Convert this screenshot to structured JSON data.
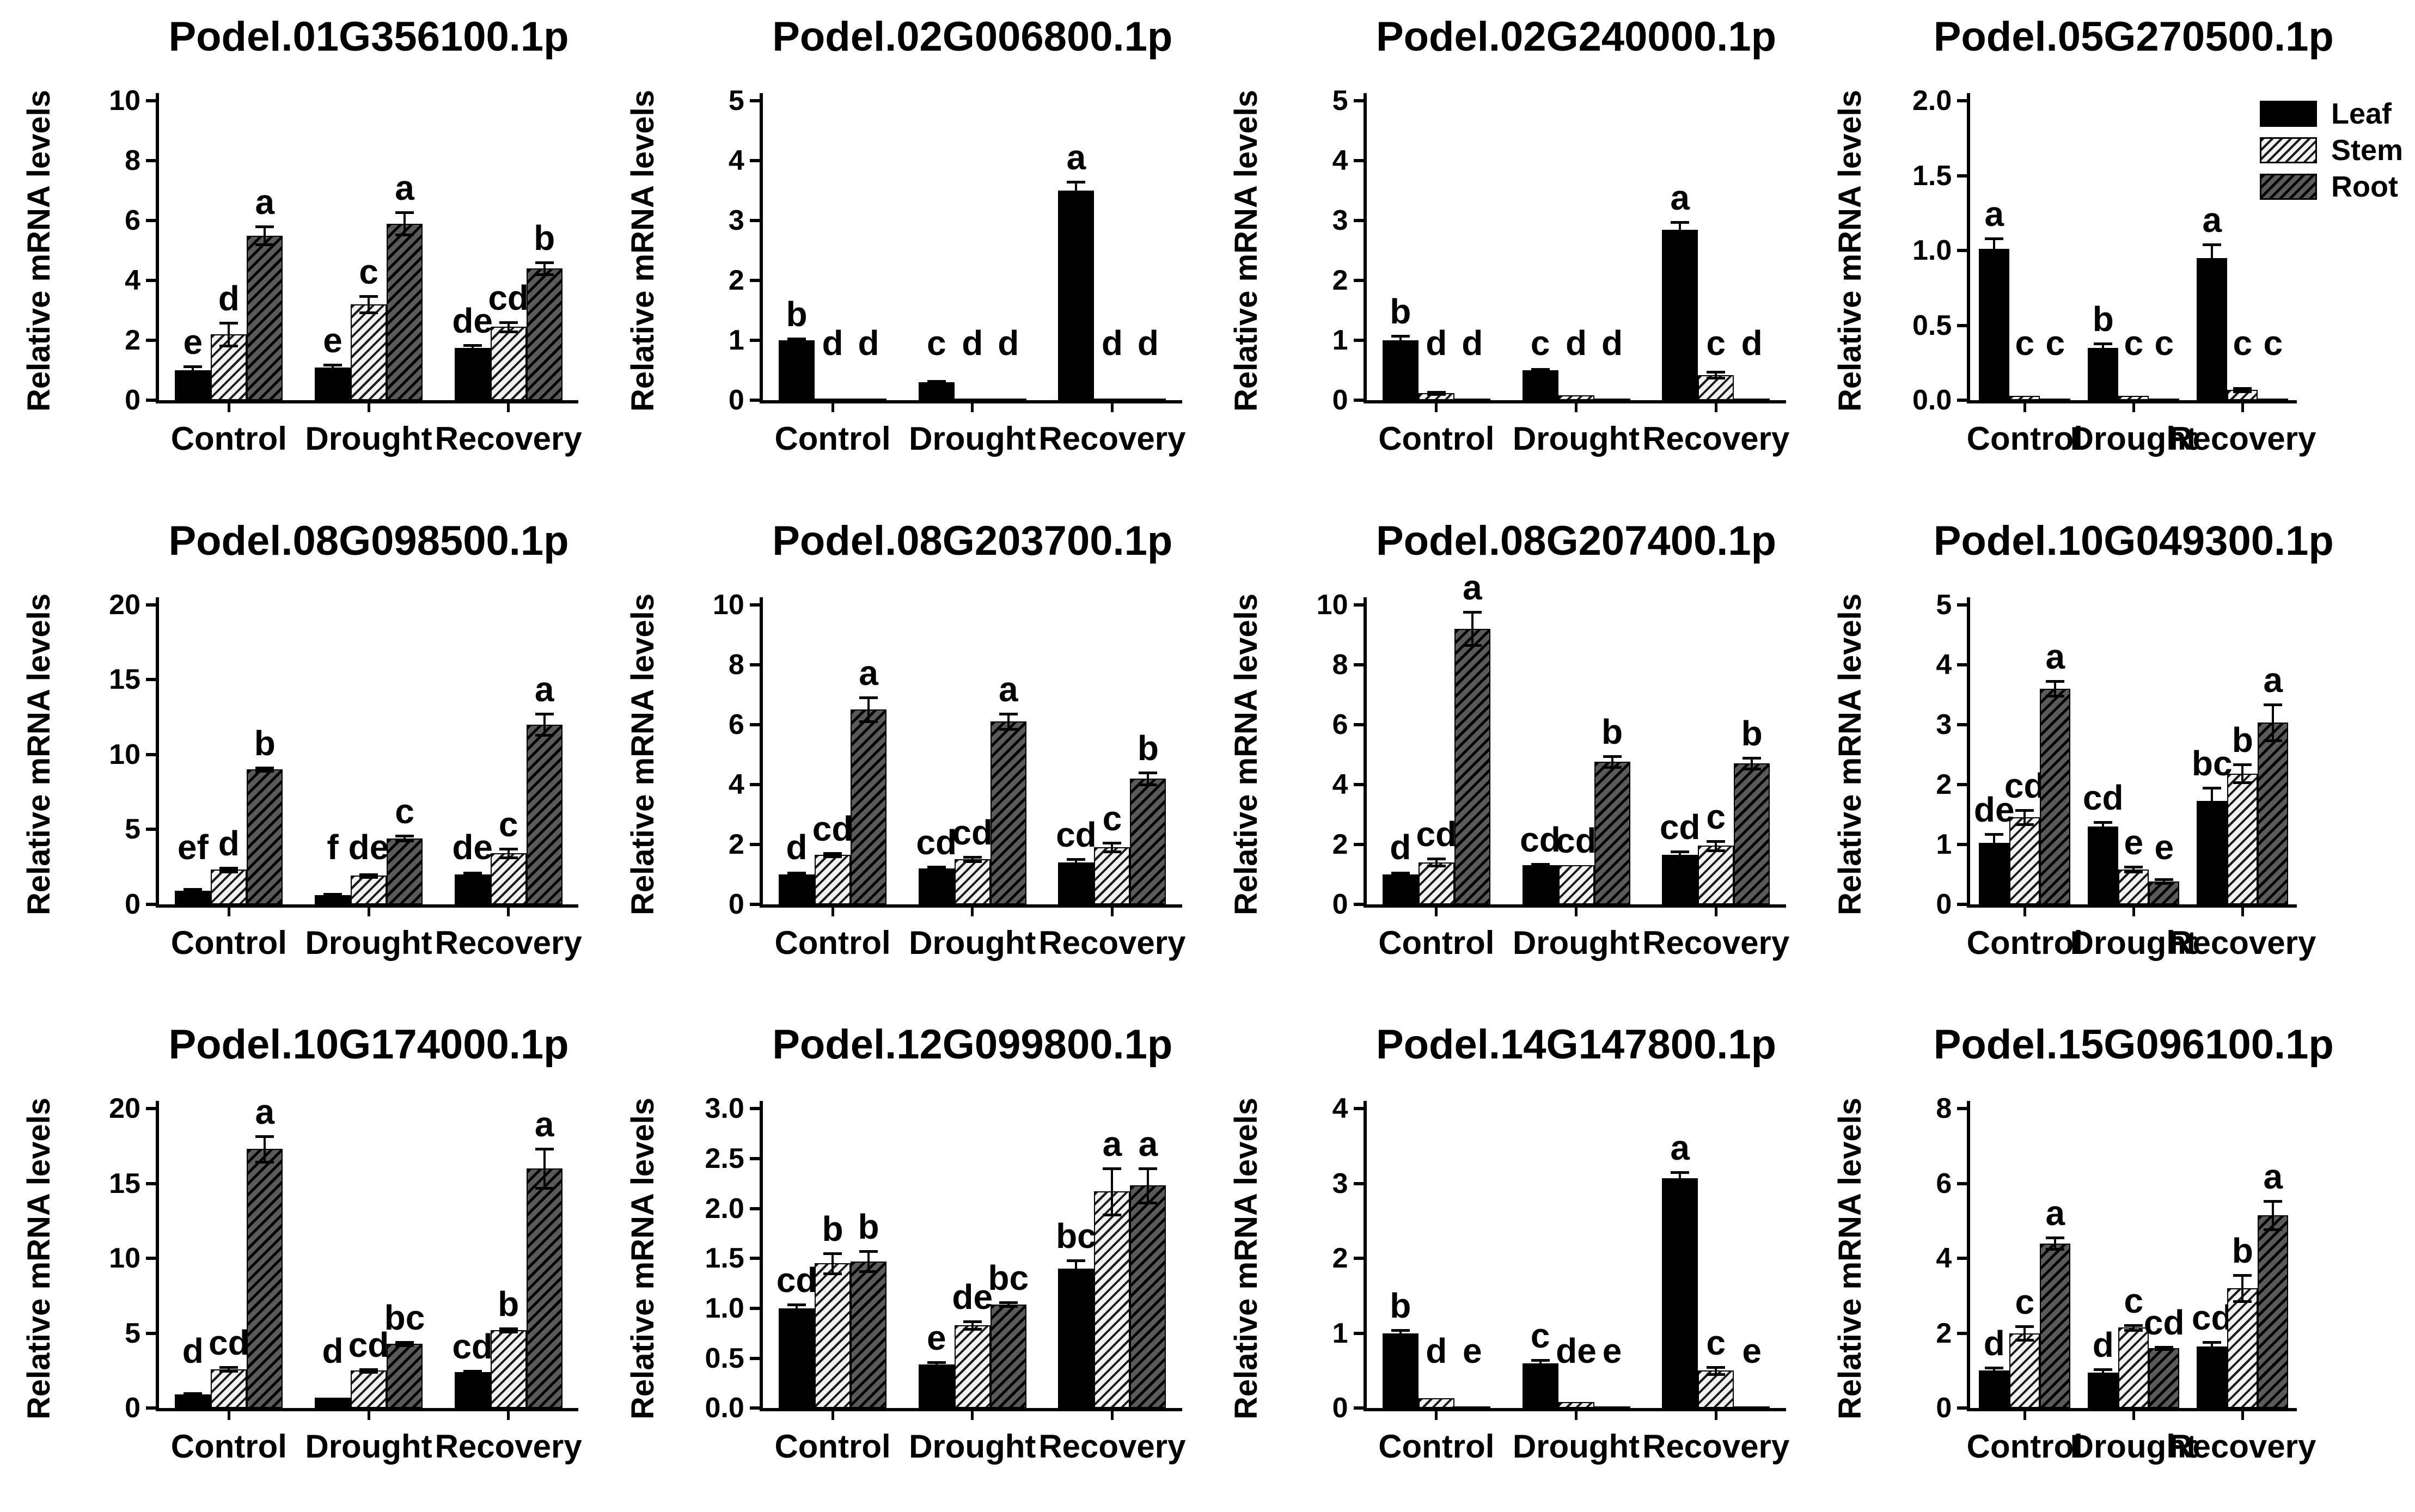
{
  "figure": {
    "ylabel": "Relative mRNA levels",
    "categories": [
      "Control",
      "Drought",
      "Recovery"
    ],
    "colors": {
      "leaf": "#000000",
      "stem_fill": "#f2f2f2",
      "stem_stripe": "#1a1a1a",
      "root_fill": "#5a5a5a",
      "root_stripe": "#000000",
      "axis": "#000000",
      "background": "#ffffff"
    }
  },
  "legend": {
    "items": [
      {
        "label": "Leaf",
        "swatch": "solid-black"
      },
      {
        "label": "Stem",
        "swatch": "light-diagonal-hatch"
      },
      {
        "label": "Root",
        "swatch": "dark-diagonal-hatch"
      }
    ]
  },
  "chart_data": [
    {
      "type": "bar",
      "title": "Podel.01G356100.1p",
      "ylabel": "Relative mRNA levels",
      "categories": [
        "Control",
        "Drought",
        "Recovery"
      ],
      "ylim": [
        0,
        10
      ],
      "yticks": [
        "0",
        "2",
        "4",
        "6",
        "8",
        "10"
      ],
      "series": [
        {
          "name": "Leaf",
          "values": [
            1.0,
            1.1,
            1.75
          ],
          "errors": [
            0.12,
            0.08,
            0.08
          ],
          "letters": [
            "e",
            "e",
            "de"
          ]
        },
        {
          "name": "Stem",
          "values": [
            2.2,
            3.2,
            2.45
          ],
          "errors": [
            0.38,
            0.28,
            0.15
          ],
          "letters": [
            "d",
            "c",
            "cd"
          ]
        },
        {
          "name": "Root",
          "values": [
            5.5,
            5.9,
            4.4
          ],
          "errors": [
            0.3,
            0.38,
            0.2
          ],
          "letters": [
            "a",
            "a",
            "b"
          ]
        }
      ]
    },
    {
      "type": "bar",
      "title": "Podel.02G006800.1p",
      "ylabel": "Relative mRNA levels",
      "categories": [
        "Control",
        "Drought",
        "Recovery"
      ],
      "ylim": [
        0,
        5
      ],
      "yticks": [
        "0",
        "1",
        "2",
        "3",
        "4",
        "5"
      ],
      "series": [
        {
          "name": "Leaf",
          "values": [
            1.0,
            0.3,
            3.5
          ],
          "errors": [
            0.03,
            0.02,
            0.15
          ],
          "letters": [
            "b",
            "c",
            "a"
          ]
        },
        {
          "name": "Stem",
          "values": [
            0.02,
            0.01,
            0.02
          ],
          "errors": [
            0,
            0.01,
            0
          ],
          "letters": [
            "d",
            "d",
            "d"
          ]
        },
        {
          "name": "Root",
          "values": [
            0.02,
            0.01,
            0.02
          ],
          "errors": [
            0,
            0,
            0
          ],
          "letters": [
            "d",
            "d",
            "d"
          ]
        }
      ]
    },
    {
      "type": "bar",
      "title": "Podel.02G240000.1p",
      "ylabel": "Relative mRNA levels",
      "categories": [
        "Control",
        "Drought",
        "Recovery"
      ],
      "ylim": [
        0,
        5
      ],
      "yticks": [
        "0",
        "1",
        "2",
        "3",
        "4",
        "5"
      ],
      "series": [
        {
          "name": "Leaf",
          "values": [
            1.0,
            0.5,
            2.85
          ],
          "errors": [
            0.07,
            0.02,
            0.12
          ],
          "letters": [
            "b",
            "c",
            "a"
          ]
        },
        {
          "name": "Stem",
          "values": [
            0.12,
            0.08,
            0.42
          ],
          "errors": [
            0.02,
            0.01,
            0.05
          ],
          "letters": [
            "d",
            "d",
            "c"
          ]
        },
        {
          "name": "Root",
          "values": [
            0.02,
            0.02,
            0.02
          ],
          "errors": [
            0,
            0,
            0
          ],
          "letters": [
            "d",
            "d",
            "d"
          ]
        }
      ]
    },
    {
      "type": "bar",
      "title": "Podel.05G270500.1p",
      "ylabel": "Relative mRNA levels",
      "categories": [
        "Control",
        "Drought",
        "Recovery"
      ],
      "ylim": [
        0,
        2
      ],
      "yticks": [
        "0.0",
        "0.5",
        "1.0",
        "1.5",
        "2.0"
      ],
      "series": [
        {
          "name": "Leaf",
          "values": [
            1.01,
            0.35,
            0.95
          ],
          "errors": [
            0.07,
            0.03,
            0.09
          ],
          "letters": [
            "a",
            "b",
            "a"
          ]
        },
        {
          "name": "Stem",
          "values": [
            0.03,
            0.03,
            0.07
          ],
          "errors": [
            0.005,
            0.005,
            0.01
          ],
          "letters": [
            "c",
            "c",
            "c"
          ]
        },
        {
          "name": "Root",
          "values": [
            0.01,
            0.01,
            0.01
          ],
          "errors": [
            0,
            0,
            0
          ],
          "letters": [
            "c",
            "c",
            "c"
          ]
        }
      ]
    },
    {
      "type": "bar",
      "title": "Podel.08G098500.1p",
      "ylabel": "Relative mRNA levels",
      "categories": [
        "Control",
        "Drought",
        "Recovery"
      ],
      "ylim": [
        0,
        20
      ],
      "yticks": [
        "0",
        "5",
        "10",
        "15",
        "20"
      ],
      "series": [
        {
          "name": "Leaf",
          "values": [
            0.9,
            0.6,
            2.0
          ],
          "errors": [
            0.1,
            0.08,
            0.08
          ],
          "letters": [
            "ef",
            "f",
            "de"
          ]
        },
        {
          "name": "Stem",
          "values": [
            2.3,
            1.9,
            3.4
          ],
          "errors": [
            0.12,
            0.1,
            0.3
          ],
          "letters": [
            "d",
            "de",
            "c"
          ]
        },
        {
          "name": "Root",
          "values": [
            9.0,
            4.4,
            12.0
          ],
          "errors": [
            0.1,
            0.15,
            0.7
          ],
          "letters": [
            "b",
            "c",
            "a"
          ]
        }
      ]
    },
    {
      "type": "bar",
      "title": "Podel.08G203700.1p",
      "ylabel": "Relative mRNA levels",
      "categories": [
        "Control",
        "Drought",
        "Recovery"
      ],
      "ylim": [
        0,
        10
      ],
      "yticks": [
        "0",
        "2",
        "4",
        "6",
        "8",
        "10"
      ],
      "series": [
        {
          "name": "Leaf",
          "values": [
            1.0,
            1.2,
            1.4
          ],
          "errors": [
            0.05,
            0.04,
            0.1
          ],
          "letters": [
            "d",
            "cd",
            "cd"
          ]
        },
        {
          "name": "Stem",
          "values": [
            1.65,
            1.5,
            1.9
          ],
          "errors": [
            0.05,
            0.08,
            0.15
          ],
          "letters": [
            "cd",
            "cd",
            "c"
          ]
        },
        {
          "name": "Root",
          "values": [
            6.5,
            6.1,
            4.2
          ],
          "errors": [
            0.4,
            0.25,
            0.2
          ],
          "letters": [
            "a",
            "a",
            "b"
          ]
        }
      ]
    },
    {
      "type": "bar",
      "title": "Podel.08G207400.1p",
      "ylabel": "Relative mRNA levels",
      "categories": [
        "Control",
        "Drought",
        "Recovery"
      ],
      "ylim": [
        0,
        10
      ],
      "yticks": [
        "0",
        "2",
        "4",
        "6",
        "8",
        "10"
      ],
      "series": [
        {
          "name": "Leaf",
          "values": [
            1.0,
            1.3,
            1.65
          ],
          "errors": [
            0.05,
            0.04,
            0.1
          ],
          "letters": [
            "d",
            "cd",
            "cd"
          ]
        },
        {
          "name": "Stem",
          "values": [
            1.4,
            1.3,
            1.95
          ],
          "errors": [
            0.12,
            0.03,
            0.15
          ],
          "letters": [
            "cd",
            "cd",
            "c"
          ]
        },
        {
          "name": "Root",
          "values": [
            9.2,
            4.75,
            4.7
          ],
          "errors": [
            0.55,
            0.18,
            0.18
          ],
          "letters": [
            "a",
            "b",
            "b"
          ]
        }
      ]
    },
    {
      "type": "bar",
      "title": "Podel.10G049300.1p",
      "ylabel": "Relative mRNA levels",
      "categories": [
        "Control",
        "Drought",
        "Recovery"
      ],
      "ylim": [
        0,
        5
      ],
      "yticks": [
        "0",
        "1",
        "2",
        "3",
        "4",
        "5"
      ],
      "series": [
        {
          "name": "Leaf",
          "values": [
            1.02,
            1.3,
            1.72
          ],
          "errors": [
            0.15,
            0.07,
            0.22
          ],
          "letters": [
            "de",
            "cd",
            "bc"
          ]
        },
        {
          "name": "Stem",
          "values": [
            1.45,
            0.58,
            2.18
          ],
          "errors": [
            0.12,
            0.04,
            0.15
          ],
          "letters": [
            "cd",
            "e",
            "b"
          ]
        },
        {
          "name": "Root",
          "values": [
            3.6,
            0.38,
            3.03
          ],
          "errors": [
            0.12,
            0.03,
            0.3
          ],
          "letters": [
            "a",
            "e",
            "a"
          ]
        }
      ]
    },
    {
      "type": "bar",
      "title": "Podel.10G174000.1p",
      "ylabel": "Relative mRNA levels",
      "categories": [
        "Control",
        "Drought",
        "Recovery"
      ],
      "ylim": [
        0,
        20
      ],
      "yticks": [
        "0",
        "5",
        "10",
        "15",
        "20"
      ],
      "series": [
        {
          "name": "Leaf",
          "values": [
            0.9,
            0.7,
            2.4
          ],
          "errors": [
            0.08,
            0.05,
            0.08
          ],
          "letters": [
            "d",
            "d",
            "cd"
          ]
        },
        {
          "name": "Stem",
          "values": [
            2.6,
            2.5,
            5.2
          ],
          "errors": [
            0.12,
            0.08,
            0.1
          ],
          "letters": [
            "cd",
            "cd",
            "b"
          ]
        },
        {
          "name": "Root",
          "values": [
            17.3,
            4.3,
            16.0
          ],
          "errors": [
            0.85,
            0.12,
            1.3
          ],
          "letters": [
            "a",
            "bc",
            "a"
          ]
        }
      ]
    },
    {
      "type": "bar",
      "title": "Podel.12G099800.1p",
      "ylabel": "Relative mRNA levels",
      "categories": [
        "Control",
        "Drought",
        "Recovery"
      ],
      "ylim": [
        0,
        3
      ],
      "yticks": [
        "0.0",
        "0.5",
        "1.0",
        "1.5",
        "2.0",
        "2.5",
        "3.0"
      ],
      "series": [
        {
          "name": "Leaf",
          "values": [
            1.0,
            0.44,
            1.4
          ],
          "errors": [
            0.04,
            0.02,
            0.08
          ],
          "letters": [
            "cd",
            "e",
            "bc"
          ]
        },
        {
          "name": "Stem",
          "values": [
            1.45,
            0.83,
            2.17
          ],
          "errors": [
            0.1,
            0.04,
            0.23
          ],
          "letters": [
            "b",
            "de",
            "a"
          ]
        },
        {
          "name": "Root",
          "values": [
            1.47,
            1.04,
            2.23
          ],
          "errors": [
            0.1,
            0.02,
            0.17
          ],
          "letters": [
            "b",
            "bc",
            "a"
          ]
        }
      ]
    },
    {
      "type": "bar",
      "title": "Podel.14G147800.1p",
      "ylabel": "Relative mRNA levels",
      "categories": [
        "Control",
        "Drought",
        "Recovery"
      ],
      "ylim": [
        0,
        4
      ],
      "yticks": [
        "0",
        "1",
        "2",
        "3",
        "4"
      ],
      "series": [
        {
          "name": "Leaf",
          "values": [
            1.0,
            0.6,
            3.07
          ],
          "errors": [
            0.04,
            0.04,
            0.08
          ],
          "letters": [
            "b",
            "c",
            "a"
          ]
        },
        {
          "name": "Stem",
          "values": [
            0.13,
            0.08,
            0.5
          ],
          "errors": [
            0.01,
            0.01,
            0.05
          ],
          "letters": [
            "d",
            "de",
            "c"
          ]
        },
        {
          "name": "Root",
          "values": [
            0.01,
            0.01,
            0.01
          ],
          "errors": [
            0,
            0,
            0
          ],
          "letters": [
            "e",
            "e",
            "e"
          ]
        }
      ]
    },
    {
      "type": "bar",
      "title": "Podel.15G096100.1p",
      "ylabel": "Relative mRNA levels",
      "categories": [
        "Control",
        "Drought",
        "Recovery"
      ],
      "ylim": [
        0,
        8
      ],
      "yticks": [
        "0",
        "2",
        "4",
        "6",
        "8"
      ],
      "series": [
        {
          "name": "Leaf",
          "values": [
            1.0,
            0.95,
            1.65
          ],
          "errors": [
            0.08,
            0.08,
            0.12
          ],
          "letters": [
            "d",
            "d",
            "cd"
          ]
        },
        {
          "name": "Stem",
          "values": [
            2.0,
            2.15,
            3.2
          ],
          "errors": [
            0.18,
            0.07,
            0.35
          ],
          "letters": [
            "c",
            "c",
            "b"
          ]
        },
        {
          "name": "Root",
          "values": [
            4.4,
            1.6,
            5.15
          ],
          "errors": [
            0.15,
            0.03,
            0.38
          ],
          "letters": [
            "a",
            "cd",
            "a"
          ]
        }
      ]
    }
  ]
}
